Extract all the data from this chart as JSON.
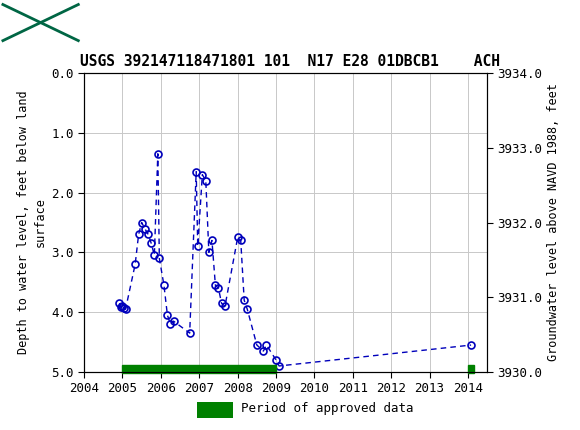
{
  "title": "USGS 392147118471801 101  N17 E28 01DBCB1    ACH",
  "ylabel_left": "Depth to water level, feet below land\nsurface",
  "ylabel_right": "Groundwater level above NAVD 1988, feet",
  "ylim_left": [
    5.0,
    0.0
  ],
  "ylim_right": [
    3930.0,
    3934.0
  ],
  "xlim": [
    2004.0,
    2014.5
  ],
  "yticks_left": [
    0.0,
    1.0,
    2.0,
    3.0,
    4.0,
    5.0
  ],
  "yticks_right": [
    3930.0,
    3931.0,
    3932.0,
    3933.0,
    3934.0
  ],
  "xticks": [
    2004,
    2005,
    2006,
    2007,
    2008,
    2009,
    2010,
    2011,
    2012,
    2013,
    2014
  ],
  "segment1_x": [
    2004.92,
    2004.96,
    2005.0,
    2005.04,
    2005.08,
    2005.33,
    2005.42,
    2005.5,
    2005.58,
    2005.67,
    2005.75,
    2005.83,
    2005.92,
    2005.96,
    2006.08,
    2006.17,
    2006.25,
    2006.33,
    2006.75,
    2006.92,
    2006.96,
    2007.08,
    2007.17,
    2007.25,
    2007.33,
    2007.42,
    2007.5,
    2007.58,
    2007.67,
    2008.0,
    2008.08,
    2008.17,
    2008.25,
    2008.5,
    2008.67,
    2008.75,
    2009.0,
    2009.08,
    2014.08
  ],
  "segment1_y": [
    3.85,
    3.92,
    3.9,
    3.93,
    3.95,
    3.2,
    2.7,
    2.5,
    2.6,
    2.7,
    2.85,
    3.05,
    1.35,
    3.1,
    3.55,
    4.05,
    4.2,
    4.15,
    4.35,
    1.65,
    2.9,
    1.7,
    1.8,
    3.0,
    2.8,
    3.55,
    3.6,
    3.85,
    3.9,
    2.75,
    2.8,
    3.8,
    3.95,
    4.55,
    4.65,
    4.55,
    4.8,
    4.9,
    4.55
  ],
  "approved_bar_start": 2005.0,
  "approved_bar_end": 2009.0,
  "approved_bar2_start": 2014.0,
  "approved_bar2_end": 2014.15,
  "line_color": "#0000BB",
  "marker_edge_color": "#0000BB",
  "approved_color": "#008000",
  "header_bg": "#006644",
  "plot_bg": "#ffffff",
  "grid_color": "#c8c8c8",
  "title_fontsize": 10.5,
  "tick_fontsize": 9,
  "axis_label_fontsize": 8.5
}
